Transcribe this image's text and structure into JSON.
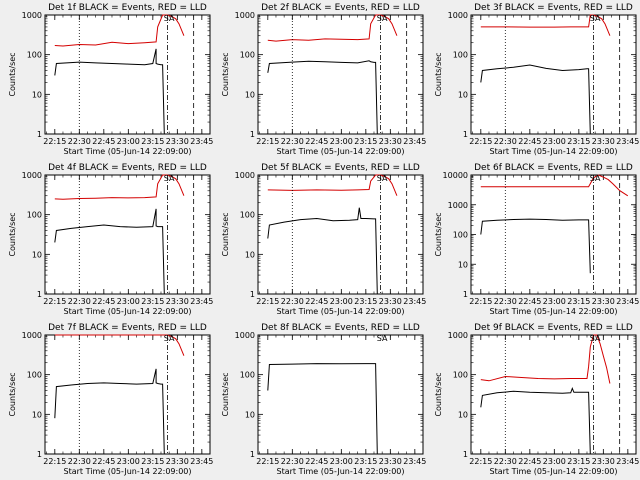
{
  "chart_data": [
    {
      "type": "line",
      "title": "Det 1f BLACK = Events, RED = LLD",
      "xlabel": "Start Time (05-Jun-14 22:09:00)",
      "ylabel": "Counts/sec",
      "yscale": "log",
      "ylim": [
        1,
        1000
      ],
      "yticks": [
        "1",
        "10",
        "100",
        "1000"
      ],
      "xticks": [
        "22:15",
        "22:30",
        "22:45",
        "23:00",
        "23:15",
        "23:30",
        "23:45"
      ],
      "markers": {
        "dotted": [
          "22:30"
        ],
        "dashdot": [
          "23:24"
        ],
        "dashed": [
          "23:40"
        ],
        "label_at": "23:25",
        "label": "SA"
      },
      "series": [
        {
          "color": "#d40000",
          "x": [
            "22:15",
            "22:20",
            "22:30",
            "22:40",
            "22:50",
            "23:00",
            "23:10",
            "23:17",
            "23:18",
            "23:21",
            "23:22",
            "23:24",
            "23:27",
            "23:29",
            "23:31",
            "23:34"
          ],
          "y": [
            170,
            165,
            180,
            175,
            205,
            190,
            200,
            210,
            500,
            1000,
            1000,
            1000,
            900,
            800,
            600,
            300
          ]
        },
        {
          "color": "#000000",
          "x": [
            "22:15",
            "22:16",
            "22:30",
            "22:40",
            "22:50",
            "23:00",
            "23:10",
            "23:15",
            "23:17",
            "23:17",
            "23:18",
            "23:20",
            "23:21",
            "23:22"
          ],
          "y": [
            30,
            60,
            65,
            62,
            60,
            58,
            56,
            60,
            140,
            60,
            58,
            56,
            56,
            1
          ]
        }
      ]
    },
    {
      "type": "line",
      "title": "Det 2f BLACK = Events, RED = LLD",
      "xlabel": "Start Time (05-Jun-14 22:09:00)",
      "ylabel": "Counts/sec",
      "yscale": "log",
      "ylim": [
        1,
        1000
      ],
      "yticks": [
        "1",
        "10",
        "100",
        "1000"
      ],
      "xticks": [
        "22:15",
        "22:30",
        "22:45",
        "23:00",
        "23:15",
        "23:30",
        "23:45"
      ],
      "markers": {
        "dotted": [
          "22:30"
        ],
        "dashdot": [
          "23:24"
        ],
        "dashed": [
          "23:40"
        ],
        "label_at": "23:25",
        "label": "SA"
      },
      "series": [
        {
          "color": "#d40000",
          "x": [
            "22:15",
            "22:20",
            "22:30",
            "22:40",
            "22:50",
            "23:00",
            "23:10",
            "23:17",
            "23:18",
            "23:21",
            "23:22",
            "23:24",
            "23:27",
            "23:29",
            "23:31",
            "23:34"
          ],
          "y": [
            230,
            220,
            240,
            230,
            250,
            245,
            240,
            250,
            600,
            1000,
            1000,
            1000,
            900,
            800,
            600,
            300
          ]
        },
        {
          "color": "#000000",
          "x": [
            "22:15",
            "22:16",
            "22:30",
            "22:40",
            "22:50",
            "23:00",
            "23:10",
            "23:17",
            "23:18",
            "23:20",
            "23:21",
            "23:22"
          ],
          "y": [
            35,
            60,
            65,
            68,
            66,
            64,
            62,
            70,
            66,
            64,
            64,
            1
          ]
        }
      ]
    },
    {
      "type": "line",
      "title": "Det 3f BLACK = Events, RED = LLD",
      "xlabel": "Start Time (05-Jun-14 22:09:00)",
      "ylabel": "Counts/sec",
      "yscale": "log",
      "ylim": [
        1,
        1000
      ],
      "yticks": [
        "1",
        "10",
        "100",
        "1000"
      ],
      "xticks": [
        "22:15",
        "22:30",
        "22:45",
        "23:00",
        "23:15",
        "23:30",
        "23:45"
      ],
      "markers": {
        "dotted": [
          "22:30"
        ],
        "dashdot": [
          "23:24"
        ],
        "dashed": [
          "23:40"
        ],
        "label_at": "23:25",
        "label": "SA"
      },
      "series": [
        {
          "color": "#d40000",
          "x": [
            "22:15",
            "22:30",
            "22:45",
            "23:00",
            "23:10",
            "23:21",
            "23:22",
            "23:24",
            "23:27",
            "23:29",
            "23:31",
            "23:34"
          ],
          "y": [
            500,
            500,
            495,
            495,
            500,
            500,
            1000,
            1000,
            900,
            800,
            600,
            300
          ]
        },
        {
          "color": "#000000",
          "x": [
            "22:15",
            "22:16",
            "22:25",
            "22:35",
            "22:45",
            "22:55",
            "23:05",
            "23:15",
            "23:20",
            "23:21",
            "23:22"
          ],
          "y": [
            20,
            40,
            44,
            48,
            55,
            45,
            40,
            42,
            44,
            44,
            1
          ]
        }
      ]
    },
    {
      "type": "line",
      "title": "Det 4f BLACK = Events, RED = LLD",
      "xlabel": "Start Time (05-Jun-14 22:09:00)",
      "ylabel": "Counts/sec",
      "yscale": "log",
      "ylim": [
        1,
        1000
      ],
      "yticks": [
        "1",
        "10",
        "100",
        "1000"
      ],
      "xticks": [
        "22:15",
        "22:30",
        "22:45",
        "23:00",
        "23:15",
        "23:30",
        "23:45"
      ],
      "markers": {
        "dotted": [
          "22:30"
        ],
        "dashdot": [
          "23:24"
        ],
        "dashed": [
          "23:40"
        ],
        "label_at": "23:25",
        "label": "SA"
      },
      "series": [
        {
          "color": "#d40000",
          "x": [
            "22:15",
            "22:20",
            "22:30",
            "22:40",
            "22:50",
            "23:00",
            "23:10",
            "23:17",
            "23:18",
            "23:21",
            "23:22",
            "23:24",
            "23:27",
            "23:29",
            "23:31",
            "23:34"
          ],
          "y": [
            250,
            245,
            255,
            260,
            270,
            265,
            270,
            280,
            600,
            1000,
            1000,
            1000,
            900,
            800,
            600,
            300
          ]
        },
        {
          "color": "#000000",
          "x": [
            "22:15",
            "22:16",
            "22:25",
            "22:35",
            "22:45",
            "22:55",
            "23:05",
            "23:15",
            "23:17",
            "23:17",
            "23:18",
            "23:20",
            "23:21",
            "23:22"
          ],
          "y": [
            20,
            40,
            45,
            50,
            55,
            50,
            48,
            50,
            140,
            52,
            50,
            50,
            50,
            1
          ]
        }
      ]
    },
    {
      "type": "line",
      "title": "Det 5f BLACK = Events, RED = LLD",
      "xlabel": "Start Time (05-Jun-14 22:09:00)",
      "ylabel": "Counts/sec",
      "yscale": "log",
      "ylim": [
        1,
        1000
      ],
      "yticks": [
        "1",
        "10",
        "100",
        "1000"
      ],
      "xticks": [
        "22:15",
        "22:30",
        "22:45",
        "23:00",
        "23:15",
        "23:30",
        "23:45"
      ],
      "markers": {
        "dotted": [
          "22:30"
        ],
        "dashdot": [
          "23:24"
        ],
        "dashed": [
          "23:40"
        ],
        "label_at": "23:25",
        "label": "SA"
      },
      "series": [
        {
          "color": "#d40000",
          "x": [
            "22:15",
            "22:30",
            "22:45",
            "23:00",
            "23:10",
            "23:17",
            "23:18",
            "23:21",
            "23:22",
            "23:24",
            "23:27",
            "23:29",
            "23:31",
            "23:34"
          ],
          "y": [
            420,
            410,
            420,
            415,
            420,
            430,
            700,
            1000,
            1000,
            1000,
            900,
            800,
            600,
            300
          ]
        },
        {
          "color": "#000000",
          "x": [
            "22:15",
            "22:16",
            "22:25",
            "22:35",
            "22:45",
            "22:55",
            "23:05",
            "23:10",
            "23:11",
            "23:12",
            "23:15",
            "23:20",
            "23:21",
            "23:22"
          ],
          "y": [
            25,
            55,
            65,
            75,
            80,
            70,
            72,
            75,
            150,
            80,
            80,
            78,
            78,
            1
          ]
        }
      ]
    },
    {
      "type": "line",
      "title": "Det 6f BLACK = Events, RED = LLD",
      "xlabel": "Start Time (05-Jun-14 22:09:00)",
      "ylabel": "Counts/sec",
      "yscale": "log",
      "ylim": [
        1,
        10000
      ],
      "yticks": [
        "1",
        "10",
        "100",
        "1000",
        "10000"
      ],
      "xticks": [
        "22:15",
        "22:30",
        "22:45",
        "23:00",
        "23:15",
        "23:30",
        "23:45"
      ],
      "markers": {
        "dotted": [
          "22:30"
        ],
        "dashdot": [
          "23:24"
        ],
        "dashed": [
          "23:40"
        ],
        "label_at": "23:25",
        "label": "SA"
      },
      "series": [
        {
          "color": "#d40000",
          "x": [
            "22:15",
            "22:30",
            "22:45",
            "23:00",
            "23:15",
            "23:21",
            "23:24",
            "23:27",
            "23:29",
            "23:31",
            "23:33",
            "23:36",
            "23:40",
            "23:45"
          ],
          "y": [
            4000,
            4000,
            4000,
            4000,
            4000,
            4000,
            8000,
            10000,
            9000,
            8000,
            7000,
            5000,
            3000,
            2000
          ]
        },
        {
          "color": "#000000",
          "x": [
            "22:15",
            "22:16",
            "22:25",
            "22:35",
            "22:45",
            "22:55",
            "23:05",
            "23:15",
            "23:20",
            "23:21",
            "23:22"
          ],
          "y": [
            100,
            280,
            300,
            320,
            330,
            320,
            300,
            310,
            310,
            310,
            5
          ]
        }
      ]
    },
    {
      "type": "line",
      "title": "Det 7f BLACK = Events, RED = LLD",
      "xlabel": "Start Time (05-Jun-14 22:09:00)",
      "ylabel": "Counts/sec",
      "yscale": "log",
      "ylim": [
        1,
        1000
      ],
      "yticks": [
        "1",
        "10",
        "100",
        "1000"
      ],
      "xticks": [
        "22:15",
        "22:30",
        "22:45",
        "23:00",
        "23:15",
        "23:30",
        "23:45"
      ],
      "markers": {
        "dotted": [
          "22:30"
        ],
        "dashdot": [
          "23:24"
        ],
        "dashed": [
          "23:40"
        ],
        "label_at": "23:25",
        "label": "SA"
      },
      "series": [
        {
          "color": "#d40000",
          "x": [
            "22:15",
            "22:30",
            "22:45",
            "23:00",
            "23:15",
            "23:21",
            "23:22",
            "23:24",
            "23:27",
            "23:29",
            "23:31",
            "23:34"
          ],
          "y": [
            1000,
            1000,
            1000,
            1000,
            1000,
            1000,
            1000,
            1000,
            900,
            800,
            600,
            300
          ]
        },
        {
          "color": "#000000",
          "x": [
            "22:15",
            "22:16",
            "22:25",
            "22:35",
            "22:45",
            "22:55",
            "23:05",
            "23:15",
            "23:17",
            "23:17",
            "23:18",
            "23:20",
            "23:21",
            "23:22"
          ],
          "y": [
            8,
            50,
            55,
            60,
            62,
            60,
            58,
            60,
            140,
            62,
            60,
            58,
            58,
            1
          ]
        }
      ]
    },
    {
      "type": "line",
      "title": "Det 8f BLACK = Events, RED = LLD",
      "xlabel": "Start Time (05-Jun-14 22:09:00)",
      "ylabel": "Counts/sec",
      "yscale": "log",
      "ylim": [
        1,
        1000
      ],
      "yticks": [
        "1",
        "10",
        "100",
        "1000"
      ],
      "xticks": [
        "22:15",
        "22:30",
        "22:45",
        "23:00",
        "23:15",
        "23:30",
        "23:45"
      ],
      "markers": {
        "dotted": [],
        "dashdot": [],
        "dashed": [],
        "label_at": "23:25",
        "label": "SA"
      },
      "series": [
        {
          "color": "#000000",
          "x": [
            "22:15",
            "22:16",
            "22:30",
            "22:45",
            "23:00",
            "23:15",
            "23:20",
            "23:21",
            "23:22"
          ],
          "y": [
            40,
            180,
            185,
            190,
            188,
            190,
            190,
            190,
            1
          ]
        }
      ]
    },
    {
      "type": "line",
      "title": "Det 9f BLACK = Events, RED = LLD",
      "xlabel": "Start Time (05-Jun-14 22:09:00)",
      "ylabel": "Counts/sec",
      "yscale": "log",
      "ylim": [
        1,
        1000
      ],
      "yticks": [
        "1",
        "10",
        "100",
        "1000"
      ],
      "xticks": [
        "22:15",
        "22:30",
        "22:45",
        "23:00",
        "23:15",
        "23:30",
        "23:45"
      ],
      "markers": {
        "dotted": [
          "22:30"
        ],
        "dashdot": [
          "23:24"
        ],
        "dashed": [
          "23:40"
        ],
        "label_at": "23:25",
        "label": "SA"
      },
      "series": [
        {
          "color": "#d40000",
          "x": [
            "22:15",
            "22:20",
            "22:30",
            "22:40",
            "22:50",
            "23:00",
            "23:10",
            "23:15",
            "23:20",
            "23:21",
            "23:22",
            "23:24",
            "23:26",
            "23:28",
            "23:30",
            "23:32",
            "23:34"
          ],
          "y": [
            75,
            70,
            90,
            85,
            80,
            78,
            80,
            80,
            80,
            160,
            500,
            1000,
            1000,
            600,
            300,
            150,
            60
          ]
        },
        {
          "color": "#000000",
          "x": [
            "22:15",
            "22:16",
            "22:25",
            "22:35",
            "22:45",
            "22:55",
            "23:05",
            "23:10",
            "23:11",
            "23:12",
            "23:15",
            "23:20",
            "23:21",
            "23:22"
          ],
          "y": [
            15,
            30,
            35,
            38,
            36,
            35,
            34,
            35,
            45,
            36,
            36,
            36,
            36,
            1
          ]
        }
      ]
    }
  ]
}
